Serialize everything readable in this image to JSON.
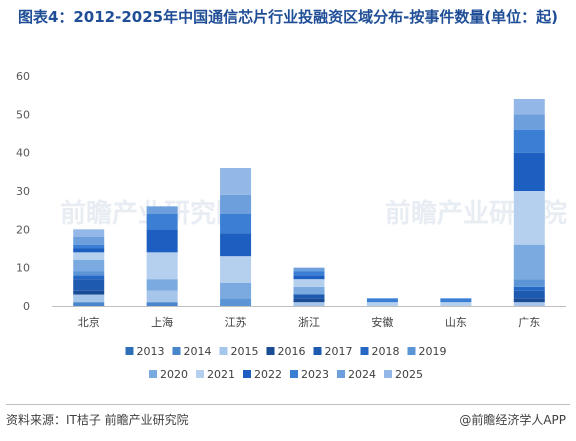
{
  "title": "图表4：2012-2025年中国通信芯片行业投融资区域分布-按事件数量(单位：起)",
  "source": "资料来源：IT桔子 前瞻产业研究院",
  "brand": "@前瞻经济学人APP",
  "watermark": "前瞻产业研究院",
  "chart_data": {
    "type": "bar",
    "stacked": true,
    "categories": [
      "北京",
      "上海",
      "江苏",
      "浙江",
      "安徽",
      "山东",
      "广东"
    ],
    "ylim": [
      0,
      60
    ],
    "yticks": [
      0,
      10,
      20,
      30,
      40,
      50,
      60
    ],
    "grid": false,
    "legend_position": "bottom",
    "series": [
      {
        "name": "2013",
        "color": "#2f6fba",
        "values": [
          0,
          0,
          0,
          0,
          0,
          0,
          0
        ]
      },
      {
        "name": "2014",
        "color": "#4a86cc",
        "values": [
          1,
          1,
          0,
          0,
          0,
          0,
          0
        ]
      },
      {
        "name": "2015",
        "color": "#a6c5ea",
        "values": [
          2,
          3,
          0,
          1,
          0,
          0,
          1
        ]
      },
      {
        "name": "2016",
        "color": "#1a4c96",
        "values": [
          1,
          0,
          0,
          1,
          0,
          0,
          1
        ]
      },
      {
        "name": "2017",
        "color": "#1e5bb0",
        "values": [
          3,
          0,
          0,
          1,
          0,
          0,
          2
        ]
      },
      {
        "name": "2018",
        "color": "#2567c4",
        "values": [
          1,
          0,
          0,
          0,
          0,
          0,
          1
        ]
      },
      {
        "name": "2019",
        "color": "#5b95d6",
        "values": [
          1,
          0,
          2,
          0,
          0,
          0,
          2
        ]
      },
      {
        "name": "2020",
        "color": "#7aaae0",
        "values": [
          3,
          3,
          4,
          2,
          0,
          0,
          9
        ]
      },
      {
        "name": "2021",
        "color": "#b5cfee",
        "values": [
          2,
          7,
          7,
          2,
          1,
          1,
          14
        ]
      },
      {
        "name": "2022",
        "color": "#1d5fc0",
        "values": [
          1,
          6,
          6,
          1,
          0,
          0,
          10
        ]
      },
      {
        "name": "2023",
        "color": "#3a7fd4",
        "values": [
          1,
          4,
          5,
          1,
          1,
          1,
          6
        ]
      },
      {
        "name": "2024",
        "color": "#6c9fdc",
        "values": [
          2,
          2,
          5,
          1,
          0,
          0,
          4
        ]
      },
      {
        "name": "2025",
        "color": "#93b8e7",
        "values": [
          2,
          0,
          7,
          0,
          0,
          0,
          4
        ]
      }
    ]
  }
}
